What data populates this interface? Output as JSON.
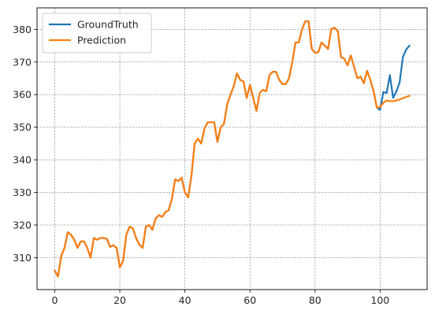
{
  "chart_data": {
    "type": "line",
    "title": "",
    "xlabel": "",
    "ylabel": "",
    "xlim": [
      -5.45,
      114.45
    ],
    "ylim": [
      300.2,
      386.6
    ],
    "xticks": [
      0,
      20,
      40,
      60,
      80,
      100
    ],
    "yticks": [
      310,
      320,
      330,
      340,
      350,
      360,
      370,
      380
    ],
    "grid": true,
    "legend_position": "top-left",
    "series": [
      {
        "name": "GroundTruth",
        "color": "#1f77b4",
        "x": [
          0,
          1,
          2,
          3,
          4,
          5,
          6,
          7,
          8,
          9,
          10,
          11,
          12,
          13,
          14,
          15,
          16,
          17,
          18,
          19,
          20,
          21,
          22,
          23,
          24,
          25,
          26,
          27,
          28,
          29,
          30,
          31,
          32,
          33,
          34,
          35,
          36,
          37,
          38,
          39,
          40,
          41,
          42,
          43,
          44,
          45,
          46,
          47,
          48,
          49,
          50,
          51,
          52,
          53,
          54,
          55,
          56,
          57,
          58,
          59,
          60,
          61,
          62,
          63,
          64,
          65,
          66,
          67,
          68,
          69,
          70,
          71,
          72,
          73,
          74,
          75,
          76,
          77,
          78,
          79,
          80,
          81,
          82,
          83,
          84,
          85,
          86,
          87,
          88,
          89,
          90,
          91,
          92,
          93,
          94,
          95,
          96,
          97,
          98,
          99,
          100,
          101,
          102,
          103,
          104,
          105,
          106,
          107,
          108,
          109
        ],
        "values": [
          306,
          304.2,
          310.5,
          313,
          317.8,
          317,
          315.5,
          313,
          315,
          315,
          313,
          310,
          316,
          315.5,
          316,
          316,
          315.8,
          313.3,
          313.8,
          313,
          307,
          309,
          317,
          319.5,
          319,
          316,
          314,
          313,
          319.5,
          320,
          318.5,
          322,
          323,
          322.5,
          324,
          324.5,
          328,
          334,
          333.5,
          334.5,
          330,
          328.5,
          335,
          345,
          346.5,
          345,
          349.5,
          351.5,
          351.5,
          351.5,
          345.5,
          350,
          351,
          357,
          360,
          362.5,
          366.5,
          364.5,
          364,
          359,
          363,
          359,
          355,
          360.5,
          361.5,
          361,
          366,
          367,
          367,
          364.5,
          363.2,
          363.2,
          365,
          370,
          376,
          376,
          380,
          382.5,
          382.5,
          374,
          372.8,
          373,
          376,
          375,
          374,
          380.2,
          380.5,
          379.5,
          371.5,
          371,
          369,
          372,
          368.5,
          365,
          365.5,
          363.5,
          367.3,
          364.5,
          361,
          356,
          355.3,
          360.8,
          360.5,
          366,
          359,
          361,
          363.7,
          371.5,
          373.8,
          375
        ]
      },
      {
        "name": "Prediction",
        "color": "#ff7f0e",
        "x": [
          0,
          1,
          2,
          3,
          4,
          5,
          6,
          7,
          8,
          9,
          10,
          11,
          12,
          13,
          14,
          15,
          16,
          17,
          18,
          19,
          20,
          21,
          22,
          23,
          24,
          25,
          26,
          27,
          28,
          29,
          30,
          31,
          32,
          33,
          34,
          35,
          36,
          37,
          38,
          39,
          40,
          41,
          42,
          43,
          44,
          45,
          46,
          47,
          48,
          49,
          50,
          51,
          52,
          53,
          54,
          55,
          56,
          57,
          58,
          59,
          60,
          61,
          62,
          63,
          64,
          65,
          66,
          67,
          68,
          69,
          70,
          71,
          72,
          73,
          74,
          75,
          76,
          77,
          78,
          79,
          80,
          81,
          82,
          83,
          84,
          85,
          86,
          87,
          88,
          89,
          90,
          91,
          92,
          93,
          94,
          95,
          96,
          97,
          98,
          99,
          100,
          101,
          102,
          103,
          104,
          105,
          106,
          107,
          108,
          109
        ],
        "values": [
          306,
          304.2,
          310.5,
          313,
          317.8,
          317,
          315.5,
          313,
          315,
          315,
          313,
          310,
          316,
          315.5,
          316,
          316,
          315.8,
          313.3,
          313.8,
          313,
          307,
          309,
          317,
          319.5,
          319,
          316,
          314,
          313,
          319.5,
          320,
          318.5,
          322,
          323,
          322.5,
          324,
          324.5,
          328,
          334,
          333.5,
          334.5,
          330,
          328.5,
          335,
          345,
          346.5,
          345,
          349.5,
          351.5,
          351.5,
          351.5,
          345.5,
          350,
          351,
          357,
          360,
          362.5,
          366.5,
          364.5,
          364,
          359,
          363,
          359,
          355,
          360.5,
          361.5,
          361,
          366,
          367,
          367,
          364.5,
          363.2,
          363.2,
          365,
          370,
          376,
          376,
          380,
          382.5,
          382.5,
          374,
          372.8,
          373,
          376,
          375,
          374,
          380.2,
          380.5,
          379.5,
          371.5,
          371,
          369,
          372,
          368.5,
          365,
          365.5,
          363.5,
          367.3,
          364.5,
          361,
          356,
          356.2,
          357.5,
          358.2,
          358,
          358,
          358.2,
          358.5,
          358.9,
          359.3,
          359.6
        ]
      }
    ]
  }
}
